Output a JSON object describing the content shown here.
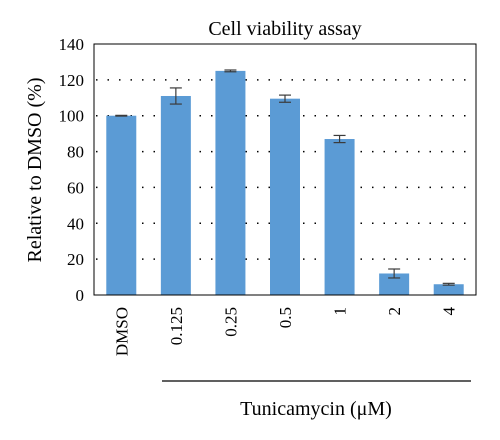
{
  "chart_data": {
    "type": "bar",
    "title": "Cell viability assay",
    "ylabel": "Relative to DMSO (%)",
    "xlabel": "",
    "ylim": [
      0,
      140
    ],
    "yticks": [
      0,
      20,
      40,
      60,
      80,
      100,
      120,
      140
    ],
    "grid": "horizontal dotted",
    "categories": [
      "DMSO",
      "0.125",
      "0.25",
      "0.5",
      "1",
      "2",
      "4"
    ],
    "values": [
      100,
      111,
      125,
      109.5,
      87,
      12,
      6
    ],
    "errors": [
      0.2,
      4.5,
      0.5,
      2,
      2,
      2.5,
      0.5
    ],
    "bar_color": "#5b9bd5",
    "group_label": "Tunicamycin (μM)"
  }
}
